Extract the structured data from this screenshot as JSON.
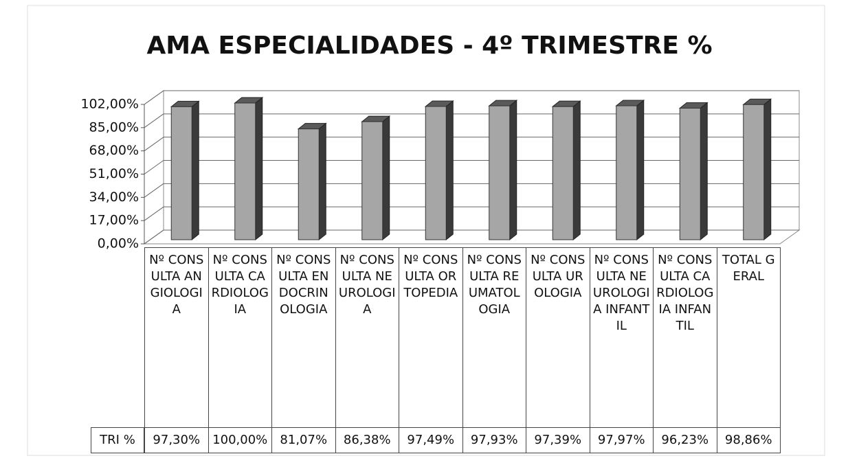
{
  "chart_data": {
    "type": "bar3d",
    "title": "AMA ESPECIALIDADES - 4º TRIMESTRE %",
    "categories": [
      "Nº CONSULTA ANGIOLOGIA",
      "Nº CONSULTA CARDIOLOGIA",
      "Nº CONSULTA ENDOCRINOLOGIA",
      "Nº CONSULTA NEUROLOGIA",
      "Nº CONSULTA ORTOPEDIA",
      "Nº CONSULTA REUMATOLOGIA",
      "Nº CONSULTA UROLOGIA",
      "Nº CONSULTA NEUROLOGIA INFANTIL",
      "Nº CONSULTA CARDIOLOGIA INFANTIL",
      "TOTAL GERAL"
    ],
    "series": [
      {
        "name": "TRI %",
        "color": "#a6a6a6",
        "values": [
          97.3,
          100,
          81.07,
          86.38,
          97.49,
          97.93,
          97.39,
          97.97,
          96.23,
          98.86
        ],
        "value_labels": [
          "97,30%",
          "100,00%",
          "81,07%",
          "86,38%",
          "97,49%",
          "97,93%",
          "97,39%",
          "97,97%",
          "96,23%",
          "98,86%"
        ]
      }
    ],
    "ylim": [
      0,
      102
    ],
    "yticks": [
      {
        "value": 0,
        "label": "0,00%"
      },
      {
        "value": 17,
        "label": "17,00%"
      },
      {
        "value": 34,
        "label": "34,00%"
      },
      {
        "value": 51,
        "label": "51,00%"
      },
      {
        "value": 68,
        "label": "68,00%"
      },
      {
        "value": 85,
        "label": "85,00%"
      },
      {
        "value": 102,
        "label": "102,00%"
      }
    ],
    "grid": true
  }
}
